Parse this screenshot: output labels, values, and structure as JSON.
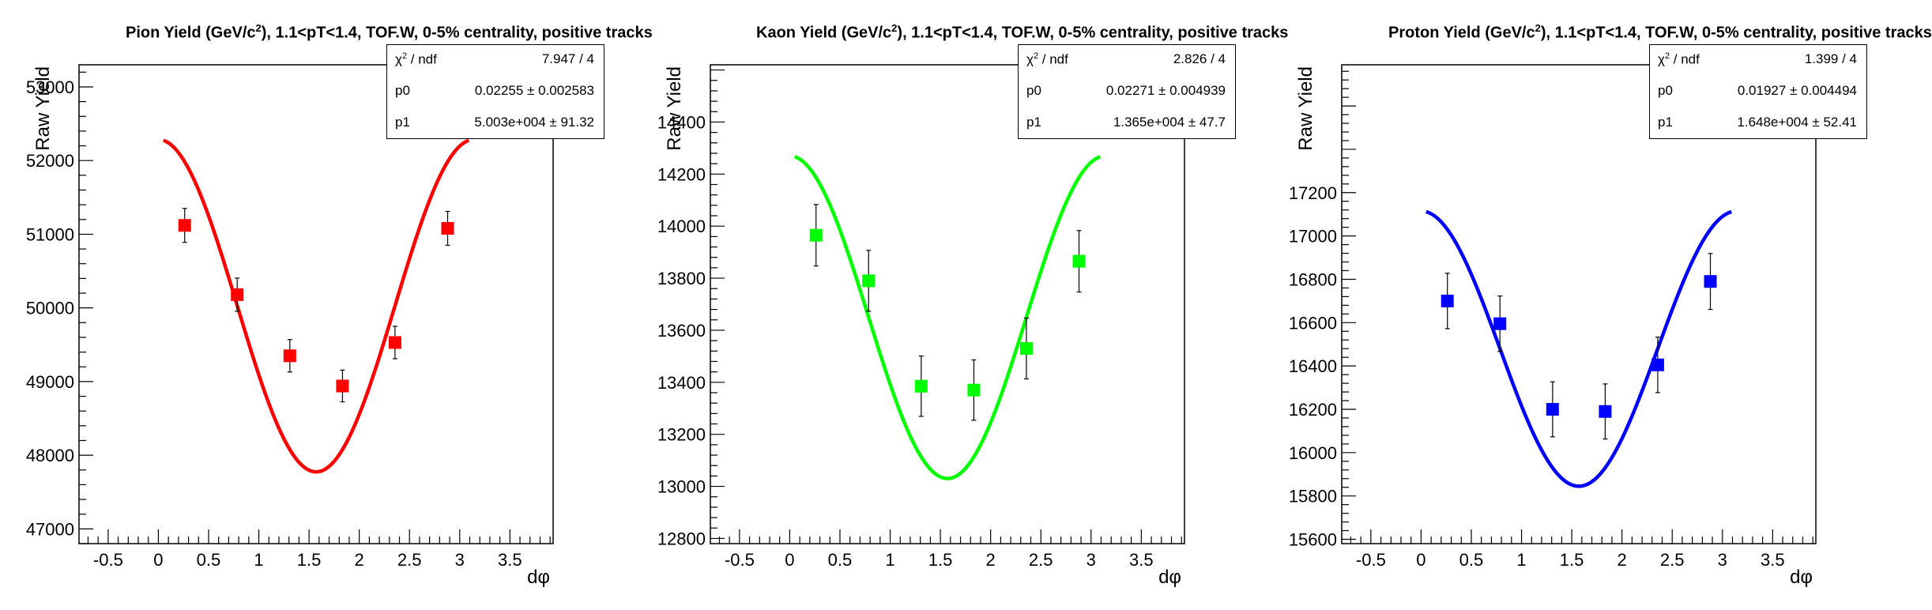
{
  "panels": [
    {
      "title_prefix": "Pion Yield (GeV/c",
      "title_sup": "2",
      "title_suffix": "), 1.1<pT<1.4, TOF.W, 0-5% centrality, positive tracks",
      "stats": {
        "chi2_label_pre": "χ",
        "chi2_label_sup": "2",
        "chi2_label_post": " / ndf",
        "chi2_value": "7.947 / 4",
        "p0_label": "p0",
        "p0_value": "0.02255 ± 0.002583",
        "p1_label": "p1",
        "p1_value": "5.003e+004 ± 91.32"
      }
    },
    {
      "title_prefix": "Kaon Yield (GeV/c",
      "title_sup": "2",
      "title_suffix": "), 1.1<pT<1.4, TOF.W, 0-5% centrality, positive tracks",
      "stats": {
        "chi2_label_pre": "χ",
        "chi2_label_sup": "2",
        "chi2_label_post": " / ndf",
        "chi2_value": "2.826 / 4",
        "p0_label": "p0",
        "p0_value": "0.02271 ± 0.004939",
        "p1_label": "p1",
        "p1_value": "1.365e+004 ± 47.7"
      }
    },
    {
      "title_prefix": "Proton Yield (GeV/c",
      "title_sup": "2",
      "title_suffix": "), 1.1<pT<1.4, TOF.W, 0-5% centrality, positive tracks",
      "stats": {
        "chi2_label_pre": "χ",
        "chi2_label_sup": "2",
        "chi2_label_post": " / ndf",
        "chi2_value": "1.399 / 4",
        "p0_label": "p0",
        "p0_value": "0.01927 ± 0.004494",
        "p1_label": "p1",
        "p1_value": "1.648e+004 ± 52.41"
      }
    }
  ],
  "chart_data": [
    {
      "type": "scatter",
      "title": "Pion Yield (GeV/c2), 1.1<pT<1.4, TOF.W, 0-5% centrality, positive tracks",
      "xlabel": "dφ",
      "ylabel": "Raw Yield",
      "xlim": [
        -0.79,
        3.93
      ],
      "ylim": [
        46800,
        53300
      ],
      "xticks": [
        -0.5,
        0,
        0.5,
        1,
        1.5,
        2,
        2.5,
        3,
        3.5
      ],
      "xtick_labels": [
        "-0.5",
        "0",
        "0.5",
        "1",
        "1.5",
        "2",
        "2.5",
        "3",
        "3.5"
      ],
      "yticks": [
        47000,
        48000,
        49000,
        50000,
        51000,
        52000,
        53000
      ],
      "ytick_labels": [
        "47000",
        "48000",
        "49000",
        "50000",
        "51000",
        "52000",
        "53000"
      ],
      "color": "#ff0000",
      "series": [
        {
          "x": [
            0.262,
            0.785,
            1.309,
            1.833,
            2.356,
            2.88
          ],
          "y": [
            51120,
            50180,
            49350,
            48940,
            49530,
            51080
          ],
          "yerr": [
            230,
            225,
            220,
            215,
            220,
            230
          ]
        }
      ],
      "fit": {
        "function": "p1*(1+2*p0*cos(2*x))",
        "p0": 0.02255,
        "p1": 50030,
        "xrange": [
          0.05,
          3.09
        ]
      }
    },
    {
      "type": "scatter",
      "title": "Kaon Yield (GeV/c2), 1.1<pT<1.4, TOF.W, 0-5% centrality, positive tracks",
      "xlabel": "dφ",
      "ylabel": "Raw Yield",
      "xlim": [
        -0.79,
        3.93
      ],
      "ylim": [
        12780,
        14620
      ],
      "xticks": [
        -0.5,
        0,
        0.5,
        1,
        1.5,
        2,
        2.5,
        3,
        3.5
      ],
      "xtick_labels": [
        "-0.5",
        "0",
        "0.5",
        "1",
        "1.5",
        "2",
        "2.5",
        "3",
        "3.5"
      ],
      "yticks": [
        12800,
        13000,
        13200,
        13400,
        13600,
        13800,
        14000,
        14200,
        14400
      ],
      "ytick_labels": [
        "12800",
        "13000",
        "13200",
        "13400",
        "13600",
        "13800",
        "14000",
        "14200",
        "14400"
      ],
      "color": "#00ff00",
      "series": [
        {
          "x": [
            0.262,
            0.785,
            1.309,
            1.833,
            2.356,
            2.88
          ],
          "y": [
            13965,
            13790,
            13385,
            13370,
            13530,
            13865
          ],
          "yerr": [
            118,
            117,
            116,
            116,
            117,
            118
          ]
        }
      ],
      "fit": {
        "function": "p1*(1+2*p0*cos(2*x))",
        "p0": 0.02271,
        "p1": 13650,
        "xrange": [
          0.05,
          3.09
        ]
      }
    },
    {
      "type": "scatter",
      "title": "Proton Yield (GeV/c2), 1.1<pT<1.4, TOF.W, 0-5% centrality, positive tracks",
      "xlabel": "dφ",
      "ylabel": "Raw Yield",
      "xlim": [
        -0.79,
        3.93
      ],
      "ylim": [
        15580,
        17790
      ],
      "xticks": [
        -0.5,
        0,
        0.5,
        1,
        1.5,
        2,
        2.5,
        3,
        3.5
      ],
      "xtick_labels": [
        "-0.5",
        "0",
        "0.5",
        "1",
        "1.5",
        "2",
        "2.5",
        "3",
        "3.5"
      ],
      "yticks": [
        15600,
        15800,
        16000,
        16200,
        16400,
        16600,
        16800,
        17000,
        17200
      ],
      "ytick_labels": [
        "15600",
        "15800",
        "16000",
        "16200",
        "16400",
        "16600",
        "16800",
        "17000",
        "17200"
      ],
      "color": "#0000ff",
      "series": [
        {
          "x": [
            0.262,
            0.785,
            1.309,
            1.833,
            2.356,
            2.88
          ],
          "y": [
            16700,
            16595,
            16200,
            16190,
            16405,
            16790
          ],
          "yerr": [
            128,
            128,
            127,
            127,
            128,
            129
          ]
        }
      ],
      "fit": {
        "function": "p1*(1+2*p0*cos(2*x))",
        "p0": 0.01927,
        "p1": 16480,
        "xrange": [
          0.05,
          3.09
        ]
      }
    }
  ]
}
